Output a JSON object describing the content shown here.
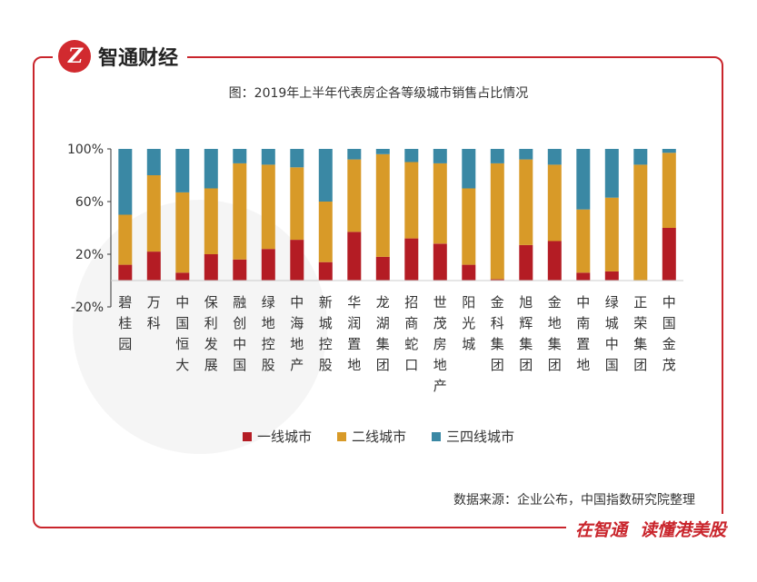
{
  "brand": {
    "logo_text": "Z",
    "name": "智通财经"
  },
  "slogan": {
    "part1": "在智通",
    "part2": "读懂港美股"
  },
  "source_text": "数据来源：企业公布，中国指数研究院整理",
  "colors": {
    "tier1": "#b41c24",
    "tier2": "#d89a28",
    "tier34": "#3a88a4",
    "frame": "#c9252c"
  },
  "chart_data": {
    "type": "bar",
    "stacked": true,
    "title": "图：2019年上半年代表房企各等级城市销售占比情况",
    "xlabel": "",
    "ylabel": "",
    "ylim": [
      -20,
      100
    ],
    "yticks": [
      "100%",
      "60%",
      "20%",
      "-20%"
    ],
    "ytick_values": [
      100,
      60,
      20,
      -20
    ],
    "categories": [
      "碧桂园",
      "万科",
      "中国恒大",
      "保利发展",
      "融创中国",
      "绿地控股",
      "中海地产",
      "新城控股",
      "华润置地",
      "龙湖集团",
      "招商蛇口",
      "世茂房地产",
      "阳光城",
      "金科集团",
      "旭辉集团",
      "金地集团",
      "中南置地",
      "绿城中国",
      "正荣集团",
      "中国金茂"
    ],
    "series": [
      {
        "name": "一线城市",
        "values": [
          12,
          22,
          6,
          20,
          16,
          24,
          31,
          14,
          37,
          18,
          32,
          28,
          12,
          1,
          27,
          30,
          6,
          7,
          0,
          40
        ]
      },
      {
        "name": "二线城市",
        "values": [
          38,
          58,
          61,
          50,
          73,
          64,
          55,
          46,
          55,
          78,
          58,
          61,
          58,
          88,
          65,
          58,
          48,
          56,
          88,
          57
        ]
      },
      {
        "name": "三四线城市",
        "values": [
          50,
          20,
          33,
          30,
          11,
          12,
          14,
          40,
          8,
          4,
          10,
          11,
          30,
          11,
          8,
          12,
          46,
          37,
          12,
          3
        ]
      }
    ],
    "legend_position": "bottom-center"
  }
}
